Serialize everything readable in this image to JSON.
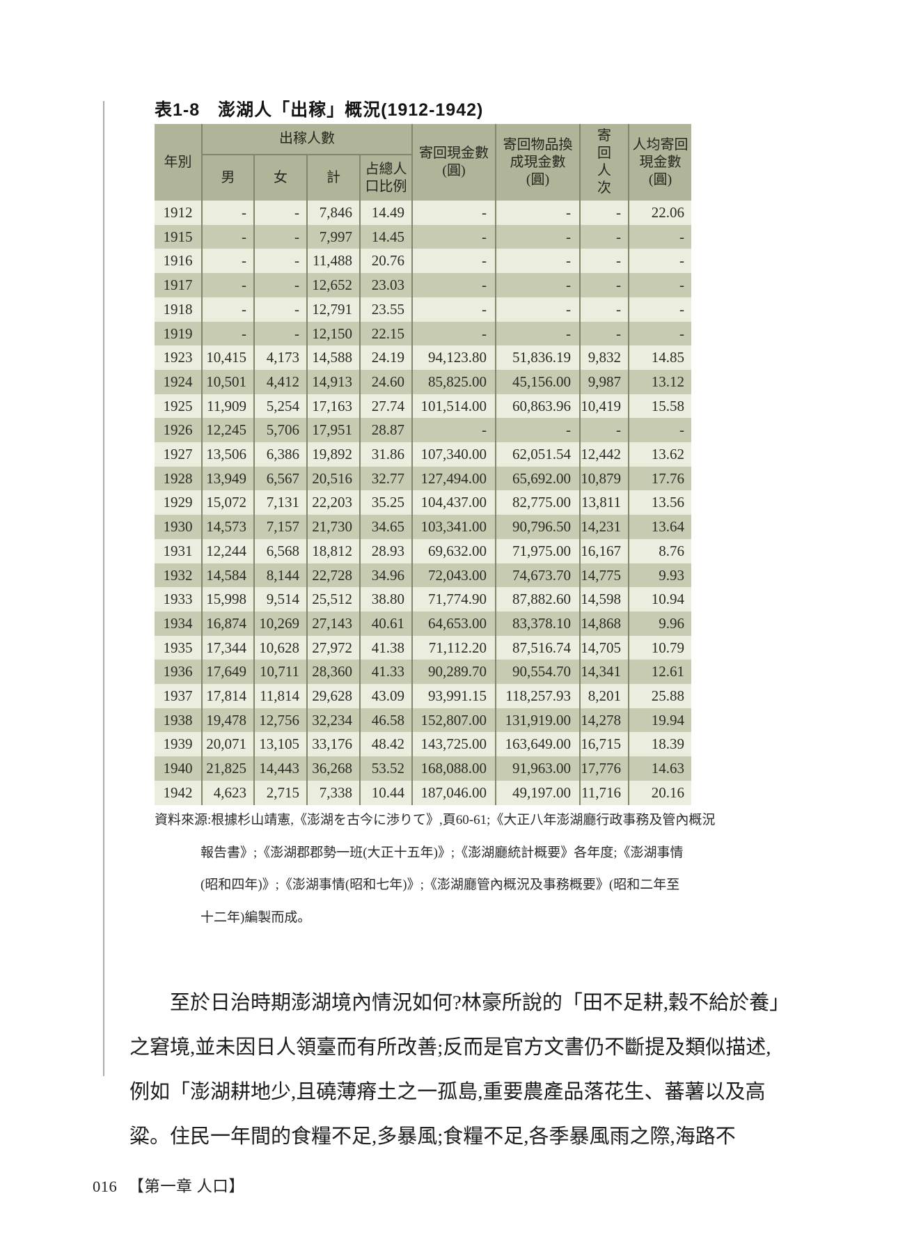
{
  "table": {
    "title_prefix": "表1-8",
    "title_main": "澎湖人「出稼」概況(1912-1942)",
    "headers": {
      "year": "年別",
      "migrants_group": "出稼人數",
      "male": "男",
      "female": "女",
      "total": "計",
      "pop_ratio": "占總人\n口比例",
      "cash_remitted": "寄回現金數\n(圓)",
      "goods_remitted": "寄回物品換\n成現金數\n(圓)",
      "remit_count": "寄\n回\n人\n次",
      "per_capita": "人均寄回\n現金數\n(圓)"
    },
    "rows": [
      [
        "1912",
        "-",
        "-",
        "7,846",
        "14.49",
        "-",
        "-",
        "-",
        "22.06"
      ],
      [
        "1915",
        "-",
        "-",
        "7,997",
        "14.45",
        "-",
        "-",
        "-",
        "-"
      ],
      [
        "1916",
        "-",
        "-",
        "11,488",
        "20.76",
        "-",
        "-",
        "-",
        "-"
      ],
      [
        "1917",
        "-",
        "-",
        "12,652",
        "23.03",
        "-",
        "-",
        "-",
        "-"
      ],
      [
        "1918",
        "-",
        "-",
        "12,791",
        "23.55",
        "-",
        "-",
        "-",
        "-"
      ],
      [
        "1919",
        "-",
        "-",
        "12,150",
        "22.15",
        "-",
        "-",
        "-",
        "-"
      ],
      [
        "1923",
        "10,415",
        "4,173",
        "14,588",
        "24.19",
        "94,123.80",
        "51,836.19",
        "9,832",
        "14.85"
      ],
      [
        "1924",
        "10,501",
        "4,412",
        "14,913",
        "24.60",
        "85,825.00",
        "45,156.00",
        "9,987",
        "13.12"
      ],
      [
        "1925",
        "11,909",
        "5,254",
        "17,163",
        "27.74",
        "101,514.00",
        "60,863.96",
        "10,419",
        "15.58"
      ],
      [
        "1926",
        "12,245",
        "5,706",
        "17,951",
        "28.87",
        "-",
        "-",
        "-",
        "-"
      ],
      [
        "1927",
        "13,506",
        "6,386",
        "19,892",
        "31.86",
        "107,340.00",
        "62,051.54",
        "12,442",
        "13.62"
      ],
      [
        "1928",
        "13,949",
        "6,567",
        "20,516",
        "32.77",
        "127,494.00",
        "65,692.00",
        "10,879",
        "17.76"
      ],
      [
        "1929",
        "15,072",
        "7,131",
        "22,203",
        "35.25",
        "104,437.00",
        "82,775.00",
        "13,811",
        "13.56"
      ],
      [
        "1930",
        "14,573",
        "7,157",
        "21,730",
        "34.65",
        "103,341.00",
        "90,796.50",
        "14,231",
        "13.64"
      ],
      [
        "1931",
        "12,244",
        "6,568",
        "18,812",
        "28.93",
        "69,632.00",
        "71,975.00",
        "16,167",
        "8.76"
      ],
      [
        "1932",
        "14,584",
        "8,144",
        "22,728",
        "34.96",
        "72,043.00",
        "74,673.70",
        "14,775",
        "9.93"
      ],
      [
        "1933",
        "15,998",
        "9,514",
        "25,512",
        "38.80",
        "71,774.90",
        "87,882.60",
        "14,598",
        "10.94"
      ],
      [
        "1934",
        "16,874",
        "10,269",
        "27,143",
        "40.61",
        "64,653.00",
        "83,378.10",
        "14,868",
        "9.96"
      ],
      [
        "1935",
        "17,344",
        "10,628",
        "27,972",
        "41.38",
        "71,112.20",
        "87,516.74",
        "14,705",
        "10.79"
      ],
      [
        "1936",
        "17,649",
        "10,711",
        "28,360",
        "41.33",
        "90,289.70",
        "90,554.70",
        "14,341",
        "12.61"
      ],
      [
        "1937",
        "17,814",
        "11,814",
        "29,628",
        "43.09",
        "93,991.15",
        "118,257.93",
        "8,201",
        "25.88"
      ],
      [
        "1938",
        "19,478",
        "12,756",
        "32,234",
        "46.58",
        "152,807.00",
        "131,919.00",
        "14,278",
        "19.94"
      ],
      [
        "1939",
        "20,071",
        "13,105",
        "33,176",
        "48.42",
        "143,725.00",
        "163,649.00",
        "16,715",
        "18.39"
      ],
      [
        "1940",
        "21,825",
        "14,443",
        "36,268",
        "53.52",
        "168,088.00",
        "91,963.00",
        "17,776",
        "14.63"
      ],
      [
        "1942",
        "4,623",
        "2,715",
        "7,338",
        "10.44",
        "187,046.00",
        "49,197.00",
        "11,716",
        "20.16"
      ]
    ],
    "colors": {
      "header_bg": "#b0b499",
      "row_light": "#ebedde",
      "row_dark": "#c7cbb1",
      "grid_line": "#80866a"
    }
  },
  "source_note_lines": [
    "資料來源:根據杉山靖憲,《澎湖を古今に渉りて》,頁60-61;《大正八年澎湖廳行政事務及管內概況",
    "報告書》;《澎湖郡郡勢一班(大正十五年)》;《澎湖廳統計概要》各年度;《澎湖事情",
    "(昭和四年)》;《澎湖事情(昭和七年)》;《澎湖廳管內概況及事務概要》(昭和二年至",
    "十二年)編製而成。"
  ],
  "paragraph_lines": [
    "至於日治時期澎湖境內情況如何?林豪所說的「田不足耕,穀不給於養」",
    "之窘境,並未因日人領臺而有所改善;反而是官方文書仍不斷提及類似描述,",
    "例如「澎湖耕地少,且磽薄瘠土之一孤島,重要農產品落花生、蕃薯以及高",
    "粱。住民一年間的食糧不足,多暴風;食糧不足,各季暴風雨之際,海路不"
  ],
  "footer": {
    "page_number": "016",
    "chapter": "【第一章 人口】"
  }
}
